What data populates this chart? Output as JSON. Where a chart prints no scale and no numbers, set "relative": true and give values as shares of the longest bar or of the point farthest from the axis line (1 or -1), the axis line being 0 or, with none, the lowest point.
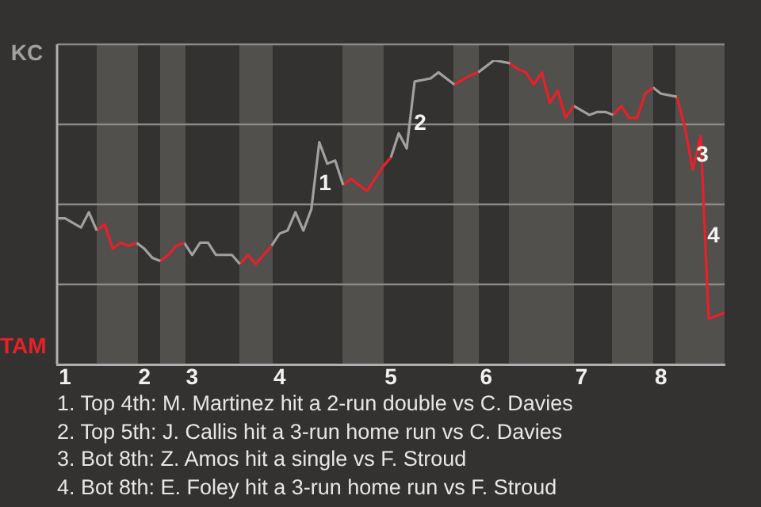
{
  "chart_data": {
    "type": "line",
    "relative": true,
    "categories": [
      null,
      "1",
      null,
      null,
      null,
      null,
      null,
      null,
      null,
      null,
      null,
      "2",
      null,
      null,
      null,
      null,
      null,
      "3",
      null,
      null,
      null,
      null,
      null,
      null,
      null,
      null,
      null,
      null,
      "4",
      null,
      null,
      null,
      null,
      null,
      null,
      null,
      null,
      null,
      null,
      null,
      null,
      null,
      "5",
      null,
      null,
      null,
      null,
      null,
      null,
      null,
      null,
      null,
      null,
      null,
      "6",
      null,
      null,
      null,
      null,
      null,
      null,
      null,
      null,
      null,
      null,
      null,
      "7",
      null,
      null,
      null,
      null,
      null,
      null,
      null,
      null,
      null,
      "8",
      null,
      null,
      null,
      null,
      null,
      null,
      null,
      null
    ],
    "series": [
      {
        "color": "#a0a0a0",
        "values": [
          0.48,
          0.48,
          null,
          0.45,
          0.5,
          0.44,
          null,
          null,
          null,
          null,
          null,
          null,
          null,
          null,
          null,
          null,
          null,
          null,
          null,
          null,
          null,
          null,
          null,
          null,
          null,
          null,
          null,
          null,
          null,
          null,
          null,
          null,
          null,
          null,
          null,
          null,
          null,
          null,
          null,
          null,
          null,
          null,
          null,
          null,
          null,
          null,
          null,
          null,
          null,
          null,
          null,
          null,
          null,
          null,
          null,
          null,
          null,
          null,
          null,
          null,
          null,
          null,
          null,
          null,
          null,
          null,
          null,
          null,
          null,
          null,
          null,
          null,
          null,
          null,
          null,
          null,
          null,
          null,
          null,
          null,
          null,
          null,
          null,
          null,
          null
        ]
      },
      {
        "color": "#e8202a",
        "values": [
          null,
          null,
          null,
          null,
          null,
          0.44,
          0.46,
          0.38,
          0.4,
          0.39,
          0.4,
          null,
          null,
          null,
          null,
          null,
          null,
          null,
          null,
          null,
          null,
          null,
          null,
          null,
          null,
          null,
          null,
          null,
          null,
          null,
          null,
          null,
          null,
          null,
          null,
          null,
          null,
          null,
          null,
          null,
          null,
          null,
          null,
          null,
          null,
          null,
          null,
          null,
          null,
          null,
          null,
          null,
          null,
          null,
          null,
          null,
          null,
          null,
          null,
          null,
          null,
          null,
          null,
          null,
          null,
          null,
          null,
          null,
          null,
          null,
          null,
          null,
          null,
          null,
          null,
          null,
          null,
          null,
          null,
          null,
          null,
          null,
          null,
          null,
          null
        ]
      },
      {
        "color": "#a0a0a0",
        "values": [
          null,
          null,
          null,
          null,
          null,
          null,
          null,
          null,
          null,
          null,
          0.4,
          0.38,
          0.35,
          0.34,
          null,
          null,
          null,
          null,
          null,
          null,
          null,
          null,
          null,
          null,
          null,
          null,
          null,
          null,
          null,
          null,
          null,
          null,
          null,
          null,
          null,
          null,
          null,
          null,
          null,
          null,
          null,
          null,
          null,
          null,
          null,
          null,
          null,
          null,
          null,
          null,
          null,
          null,
          null,
          null,
          null,
          null,
          null,
          null,
          null,
          null,
          null,
          null,
          null,
          null,
          null,
          null,
          null,
          null,
          null,
          null,
          null,
          null,
          null,
          null,
          null,
          null,
          null,
          null,
          null,
          null,
          null,
          null,
          null,
          null,
          null
        ]
      },
      {
        "color": "#e8202a",
        "values": [
          null,
          null,
          null,
          null,
          null,
          null,
          null,
          null,
          null,
          null,
          null,
          null,
          null,
          0.34,
          0.36,
          0.39,
          0.4,
          null,
          null,
          null,
          null,
          null,
          null,
          null,
          null,
          null,
          null,
          null,
          null,
          null,
          null,
          null,
          null,
          null,
          null,
          null,
          null,
          null,
          null,
          null,
          null,
          null,
          null,
          null,
          null,
          null,
          null,
          null,
          null,
          null,
          null,
          null,
          null,
          null,
          null,
          null,
          null,
          null,
          null,
          null,
          null,
          null,
          null,
          null,
          null,
          null,
          null,
          null,
          null,
          null,
          null,
          null,
          null,
          null,
          null,
          null,
          null,
          null,
          null,
          null,
          null,
          null,
          null,
          null,
          null
        ]
      },
      {
        "color": "#a0a0a0",
        "values": [
          null,
          null,
          null,
          null,
          null,
          null,
          null,
          null,
          null,
          null,
          null,
          null,
          null,
          null,
          null,
          null,
          0.4,
          0.36,
          0.4,
          0.4,
          0.36,
          null,
          0.36,
          0.33,
          null,
          null,
          null,
          null,
          null,
          null,
          null,
          null,
          null,
          null,
          null,
          null,
          null,
          null,
          null,
          null,
          null,
          null,
          null,
          null,
          null,
          null,
          null,
          null,
          null,
          null,
          null,
          null,
          null,
          null,
          null,
          null,
          null,
          null,
          null,
          null,
          null,
          null,
          null,
          null,
          null,
          null,
          null,
          null,
          null,
          null,
          null,
          null,
          null,
          null,
          null,
          null,
          null,
          null,
          null,
          null,
          null,
          null,
          null,
          null,
          null
        ]
      },
      {
        "color": "#e8202a",
        "values": [
          null,
          null,
          null,
          null,
          null,
          null,
          null,
          null,
          null,
          null,
          null,
          null,
          null,
          null,
          null,
          null,
          null,
          null,
          null,
          null,
          null,
          null,
          null,
          0.33,
          0.36,
          0.33,
          0.36,
          0.39,
          null,
          null,
          null,
          null,
          null,
          null,
          null,
          null,
          null,
          null,
          null,
          null,
          null,
          null,
          null,
          null,
          null,
          null,
          null,
          null,
          null,
          null,
          null,
          null,
          null,
          null,
          null,
          null,
          null,
          null,
          null,
          null,
          null,
          null,
          null,
          null,
          null,
          null,
          null,
          null,
          null,
          null,
          null,
          null,
          null,
          null,
          null,
          null,
          null,
          null,
          null,
          null,
          null,
          null,
          null,
          null,
          null
        ]
      },
      {
        "color": "#a0a0a0",
        "values": [
          null,
          null,
          null,
          null,
          null,
          null,
          null,
          null,
          null,
          null,
          null,
          null,
          null,
          null,
          null,
          null,
          null,
          null,
          null,
          null,
          null,
          null,
          null,
          null,
          null,
          null,
          null,
          0.39,
          0.43,
          0.44,
          0.5,
          0.44,
          0.51,
          0.73,
          0.66,
          0.67,
          0.59,
          null,
          null,
          null,
          null,
          null,
          null,
          null,
          null,
          null,
          null,
          null,
          null,
          null,
          null,
          null,
          null,
          null,
          null,
          null,
          null,
          null,
          null,
          null,
          null,
          null,
          null,
          null,
          null,
          null,
          null,
          null,
          null,
          null,
          null,
          null,
          null,
          null,
          null,
          null,
          null,
          null,
          null,
          null,
          null,
          null,
          null,
          null,
          null
        ]
      },
      {
        "color": "#e8202a",
        "values": [
          null,
          null,
          null,
          null,
          null,
          null,
          null,
          null,
          null,
          null,
          null,
          null,
          null,
          null,
          null,
          null,
          null,
          null,
          null,
          null,
          null,
          null,
          null,
          null,
          null,
          null,
          null,
          null,
          null,
          null,
          null,
          null,
          null,
          null,
          null,
          null,
          0.59,
          0.61,
          0.59,
          0.57,
          null,
          0.65,
          0.68,
          null,
          null,
          null,
          null,
          null,
          null,
          null,
          null,
          null,
          null,
          null,
          null,
          null,
          null,
          null,
          null,
          null,
          null,
          null,
          null,
          null,
          null,
          null,
          null,
          null,
          null,
          null,
          null,
          null,
          null,
          null,
          null,
          null,
          null,
          null,
          null,
          null,
          null,
          null,
          null,
          null,
          null
        ]
      },
      {
        "color": "#a0a0a0",
        "values": [
          null,
          null,
          null,
          null,
          null,
          null,
          null,
          null,
          null,
          null,
          null,
          null,
          null,
          null,
          null,
          null,
          null,
          null,
          null,
          null,
          null,
          null,
          null,
          null,
          null,
          null,
          null,
          null,
          null,
          null,
          null,
          null,
          null,
          null,
          null,
          null,
          null,
          null,
          null,
          null,
          null,
          null,
          0.68,
          0.76,
          0.71,
          0.93,
          null,
          0.94,
          0.96,
          null,
          0.92,
          null,
          null,
          null,
          null,
          null,
          null,
          null,
          null,
          null,
          null,
          null,
          null,
          null,
          null,
          null,
          null,
          null,
          null,
          null,
          null,
          null,
          null,
          null,
          null,
          null,
          null,
          null,
          null,
          null,
          null,
          null,
          null,
          null,
          null
        ]
      },
      {
        "color": "#e8202a",
        "values": [
          null,
          null,
          null,
          null,
          null,
          null,
          null,
          null,
          null,
          null,
          null,
          null,
          null,
          null,
          null,
          null,
          null,
          null,
          null,
          null,
          null,
          null,
          null,
          null,
          null,
          null,
          null,
          null,
          null,
          null,
          null,
          null,
          null,
          null,
          null,
          null,
          null,
          null,
          null,
          null,
          null,
          null,
          null,
          null,
          null,
          null,
          null,
          null,
          null,
          null,
          0.92,
          null,
          0.95,
          0.96,
          null,
          null,
          null,
          null,
          null,
          null,
          null,
          null,
          null,
          null,
          null,
          null,
          null,
          null,
          null,
          null,
          null,
          null,
          null,
          null,
          null,
          null,
          null,
          null,
          null,
          null,
          null,
          null,
          null,
          null,
          null
        ]
      },
      {
        "color": "#a0a0a0",
        "values": [
          null,
          null,
          null,
          null,
          null,
          null,
          null,
          null,
          null,
          null,
          null,
          null,
          null,
          null,
          null,
          null,
          null,
          null,
          null,
          null,
          null,
          null,
          null,
          null,
          null,
          null,
          null,
          null,
          null,
          null,
          null,
          null,
          null,
          null,
          null,
          null,
          null,
          null,
          null,
          null,
          null,
          null,
          null,
          null,
          null,
          null,
          null,
          null,
          null,
          null,
          null,
          null,
          null,
          0.96,
          null,
          1.0,
          null,
          0.99,
          null,
          null,
          null,
          null,
          null,
          null,
          null,
          null,
          null,
          null,
          null,
          null,
          null,
          null,
          null,
          null,
          null,
          null,
          null,
          null,
          null,
          null,
          null,
          null,
          null,
          null,
          null
        ]
      },
      {
        "color": "#e8202a",
        "values": [
          null,
          null,
          null,
          null,
          null,
          null,
          null,
          null,
          null,
          null,
          null,
          null,
          null,
          null,
          null,
          null,
          null,
          null,
          null,
          null,
          null,
          null,
          null,
          null,
          null,
          null,
          null,
          null,
          null,
          null,
          null,
          null,
          null,
          null,
          null,
          null,
          null,
          null,
          null,
          null,
          null,
          null,
          null,
          null,
          null,
          null,
          null,
          null,
          null,
          null,
          null,
          null,
          null,
          null,
          null,
          null,
          null,
          0.99,
          0.97,
          0.96,
          0.92,
          0.96,
          0.86,
          0.9,
          0.81,
          0.85,
          null,
          null,
          null,
          null,
          null,
          null,
          null,
          null,
          null,
          null,
          null,
          null,
          null,
          null,
          null,
          null,
          null,
          null,
          null
        ]
      },
      {
        "color": "#a0a0a0",
        "values": [
          null,
          null,
          null,
          null,
          null,
          null,
          null,
          null,
          null,
          null,
          null,
          null,
          null,
          null,
          null,
          null,
          null,
          null,
          null,
          null,
          null,
          null,
          null,
          null,
          null,
          null,
          null,
          null,
          null,
          null,
          null,
          null,
          null,
          null,
          null,
          null,
          null,
          null,
          null,
          null,
          null,
          null,
          null,
          null,
          null,
          null,
          null,
          null,
          null,
          null,
          null,
          null,
          null,
          null,
          null,
          null,
          null,
          null,
          null,
          null,
          null,
          null,
          null,
          null,
          null,
          0.85,
          null,
          0.82,
          0.83,
          0.83,
          0.82,
          null,
          null,
          null,
          null,
          null,
          null,
          null,
          null,
          null,
          null,
          null,
          null,
          null,
          null
        ]
      },
      {
        "color": "#e8202a",
        "values": [
          null,
          null,
          null,
          null,
          null,
          null,
          null,
          null,
          null,
          null,
          null,
          null,
          null,
          null,
          null,
          null,
          null,
          null,
          null,
          null,
          null,
          null,
          null,
          null,
          null,
          null,
          null,
          null,
          null,
          null,
          null,
          null,
          null,
          null,
          null,
          null,
          null,
          null,
          null,
          null,
          null,
          null,
          null,
          null,
          null,
          null,
          null,
          null,
          null,
          null,
          null,
          null,
          null,
          null,
          null,
          null,
          null,
          null,
          null,
          null,
          null,
          null,
          null,
          null,
          null,
          null,
          null,
          null,
          null,
          null,
          0.82,
          0.85,
          0.81,
          0.81,
          0.89,
          0.91,
          null,
          null,
          null,
          null,
          null,
          null,
          null,
          null,
          null
        ]
      },
      {
        "color": "#a0a0a0",
        "values": [
          null,
          null,
          null,
          null,
          null,
          null,
          null,
          null,
          null,
          null,
          null,
          null,
          null,
          null,
          null,
          null,
          null,
          null,
          null,
          null,
          null,
          null,
          null,
          null,
          null,
          null,
          null,
          null,
          null,
          null,
          null,
          null,
          null,
          null,
          null,
          null,
          null,
          null,
          null,
          null,
          null,
          null,
          null,
          null,
          null,
          null,
          null,
          null,
          null,
          null,
          null,
          null,
          null,
          null,
          null,
          null,
          null,
          null,
          null,
          null,
          null,
          null,
          null,
          null,
          null,
          null,
          null,
          null,
          null,
          null,
          null,
          null,
          null,
          null,
          null,
          0.91,
          0.89,
          null,
          0.88,
          null,
          null,
          null,
          null,
          null,
          null
        ]
      },
      {
        "color": "#e8202a",
        "values": [
          null,
          null,
          null,
          null,
          null,
          null,
          null,
          null,
          null,
          null,
          null,
          null,
          null,
          null,
          null,
          null,
          null,
          null,
          null,
          null,
          null,
          null,
          null,
          null,
          null,
          null,
          null,
          null,
          null,
          null,
          null,
          null,
          null,
          null,
          null,
          null,
          null,
          null,
          null,
          null,
          null,
          null,
          null,
          null,
          null,
          null,
          null,
          null,
          null,
          null,
          null,
          null,
          null,
          null,
          null,
          null,
          null,
          null,
          null,
          null,
          null,
          null,
          null,
          null,
          null,
          null,
          null,
          null,
          null,
          null,
          null,
          null,
          null,
          null,
          null,
          null,
          null,
          null,
          0.88,
          0.78,
          0.64,
          0.75,
          0.15,
          0.16,
          0.17
        ]
      }
    ],
    "grid": "y",
    "annotations": [
      "KC",
      "TAM",
      "1",
      "2",
      "3",
      "4",
      "1. Top 4th: M. Martinez hit a 2-run double vs C. Davies",
      "2. Top 5th: J. Callis hit a 3-run home run vs C. Davies",
      "3. Bot 8th: Z. Amos hit a single vs F. Stroud",
      "4. Bot 8th: E. Foley hit a 3-run home run vs F. Stroud"
    ]
  }
}
